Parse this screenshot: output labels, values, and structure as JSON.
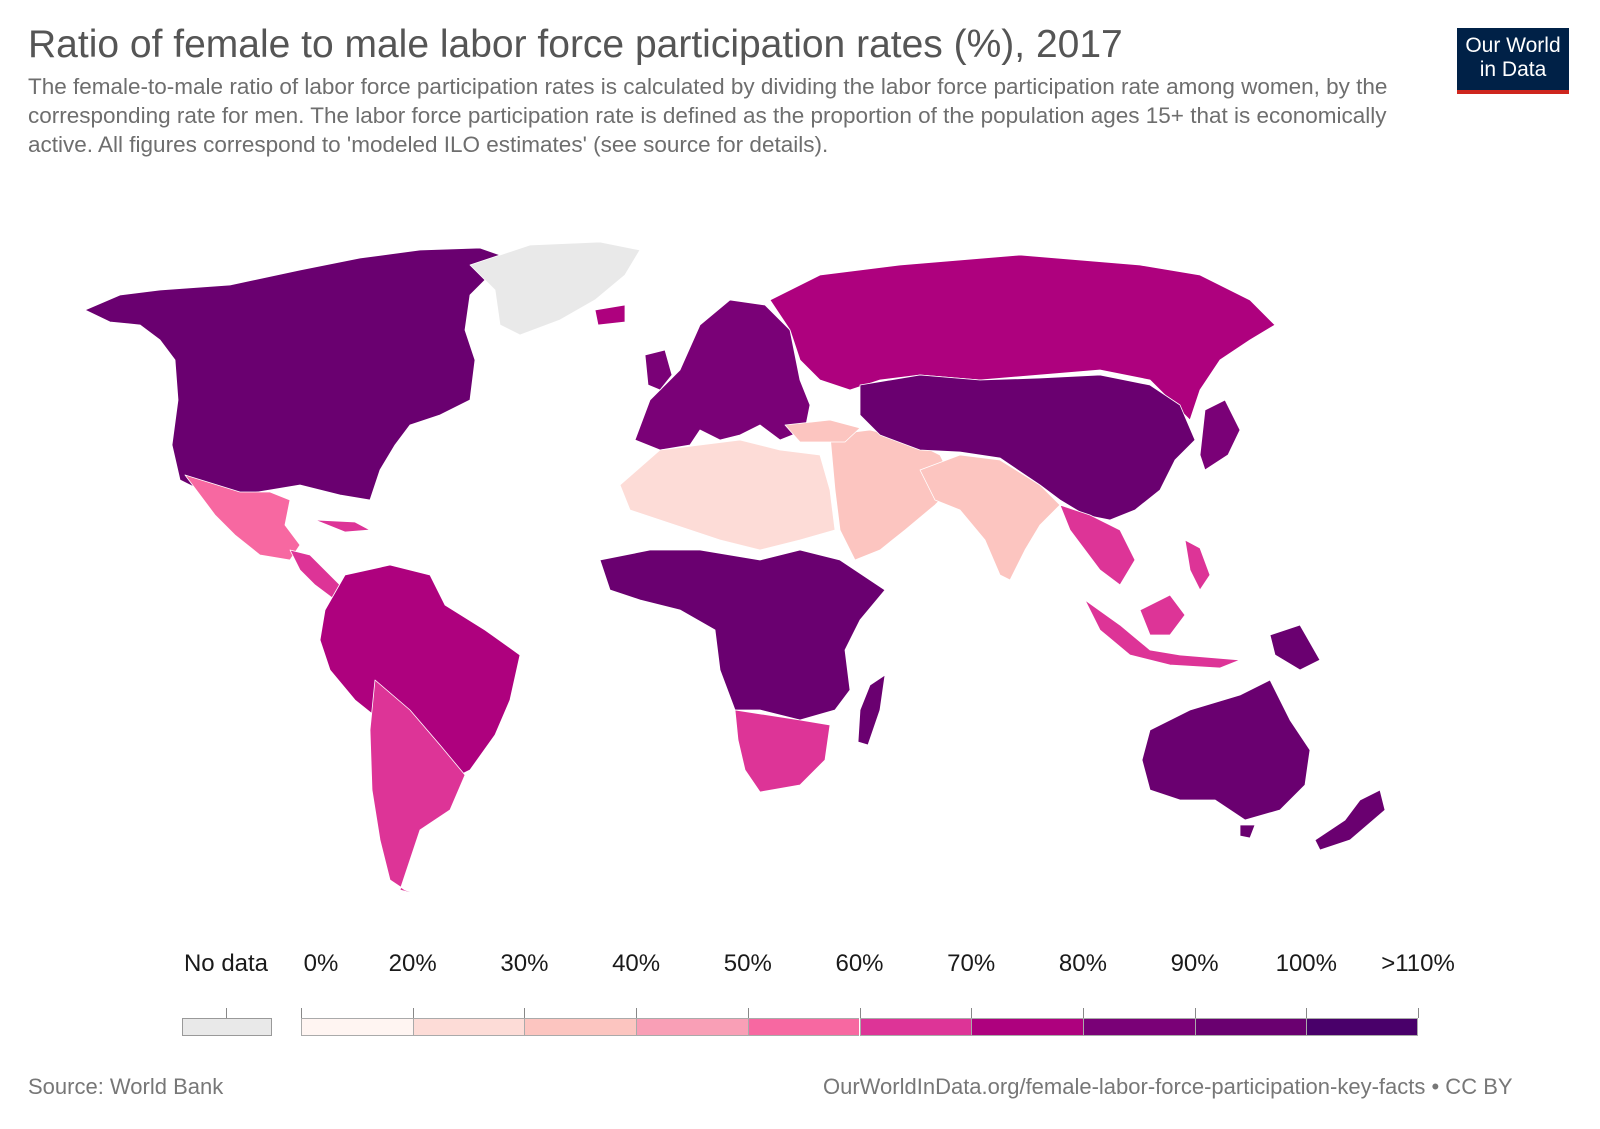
{
  "header": {
    "title": "Ratio of female to male labor force participation rates (%), 2017",
    "subtitle": "The female-to-male ratio of labor force participation rates is calculated by dividing the labor force participation rate among women, by the corresponding rate for men. The labor force participation rate is defined as the proportion of the population ages 15+ that is economically active. All figures correspond to 'modeled ILO estimates' (see source for details).",
    "logo_line1": "Our World",
    "logo_line2": "in Data"
  },
  "legend": {
    "nodata_label": "No data",
    "nodata_color": "#e9e9e9",
    "bins": [
      {
        "label": "0%",
        "color": "#fff5f2"
      },
      {
        "label": "20%",
        "color": "#fddcd7"
      },
      {
        "label": "30%",
        "color": "#fcc5c0"
      },
      {
        "label": "40%",
        "color": "#f99fb6"
      },
      {
        "label": "50%",
        "color": "#f768a1"
      },
      {
        "label": "60%",
        "color": "#dd3497"
      },
      {
        "label": "70%",
        "color": "#ae017e"
      },
      {
        "label": "80%",
        "color": "#7a0177"
      },
      {
        "label": "90%",
        "color": "#6a0070"
      },
      {
        "label": "100%",
        "color": "#49006a"
      }
    ],
    "end_label": ">110%"
  },
  "regions": [
    {
      "name": "North America",
      "color": "#6a0070"
    },
    {
      "name": "Greenland",
      "color": "#e9e9e9"
    },
    {
      "name": "Mexico",
      "color": "#f768a1"
    },
    {
      "name": "Central America",
      "color": "#dd3497"
    },
    {
      "name": "South America North",
      "color": "#ae017e"
    },
    {
      "name": "South America South",
      "color": "#dd3497"
    },
    {
      "name": "Europe",
      "color": "#7a0177"
    },
    {
      "name": "Russia",
      "color": "#ae017e"
    },
    {
      "name": "North Africa",
      "color": "#fddcd7"
    },
    {
      "name": "Middle East",
      "color": "#fcc5c0"
    },
    {
      "name": "Sub-Saharan Africa",
      "color": "#6a0070"
    },
    {
      "name": "Southern Africa",
      "color": "#dd3497"
    },
    {
      "name": "South Asia",
      "color": "#fcc5c0"
    },
    {
      "name": "China",
      "color": "#6a0070"
    },
    {
      "name": "Southeast Asia",
      "color": "#dd3497"
    },
    {
      "name": "Australia",
      "color": "#6a0070"
    },
    {
      "name": "New Zealand",
      "color": "#6a0070"
    },
    {
      "name": "Madagascar",
      "color": "#6a0070"
    }
  ],
  "footer": {
    "source": "Source: World Bank",
    "url": "OurWorldInData.org/female-labor-force-participation-key-facts • CC BY"
  }
}
